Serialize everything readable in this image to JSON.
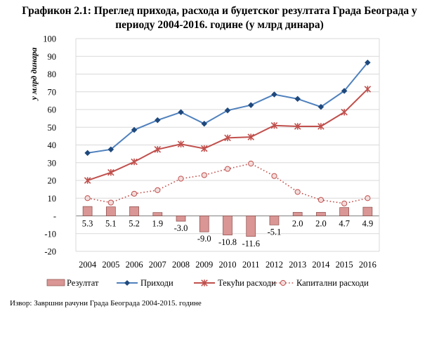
{
  "title_line1": "Графикон 2.1: Преглед прихода, расхода и буџетског резултата Града Београда у",
  "title_line2": "периоду 2004-2016. године (у млрд динара)",
  "source": "Извор: Завршни рачуни Града Београда 2004-2015. године",
  "chart_data": {
    "type": "bar",
    "ylabel": "у млрд динара",
    "ylim": [
      -20,
      100
    ],
    "yticks": [
      -20,
      -10,
      0,
      10,
      20,
      30,
      40,
      50,
      60,
      70,
      80,
      90,
      100
    ],
    "ytick_labels": [
      "-20",
      "-10",
      "-",
      "10",
      "20",
      "30",
      "40",
      "50",
      "60",
      "70",
      "80",
      "90",
      "100"
    ],
    "categories": [
      "2004",
      "2005",
      "2006",
      "2007",
      "2008",
      "2009",
      "2010",
      "2011",
      "2012",
      "2013",
      "2014",
      "2015",
      "2016"
    ],
    "grid": true,
    "legend_position": "bottom",
    "series": [
      {
        "name": "Резултат",
        "kind": "bar",
        "color": "#d99694",
        "values": [
          5.3,
          5.1,
          5.2,
          1.9,
          -3.0,
          -9.0,
          -10.8,
          -11.6,
          -5.1,
          2.0,
          2.0,
          4.7,
          4.9
        ],
        "labels": [
          "5.3",
          "5.1",
          "5.2",
          "1.9",
          "-3.0",
          "-9.0",
          "-10.8",
          "-11.6",
          "-5.1",
          "2.0",
          "2.0",
          "4.7",
          "4.9"
        ]
      },
      {
        "name": "Приходи",
        "kind": "line",
        "marker": "diamond",
        "color": "#4f81bd",
        "values": [
          35.5,
          37.5,
          48.5,
          54,
          58.5,
          52,
          59.5,
          62.5,
          68.5,
          66,
          61.5,
          70.5,
          86.5
        ]
      },
      {
        "name": "Текући расходи",
        "kind": "line",
        "marker": "star",
        "color": "#c0504d",
        "values": [
          20,
          24.5,
          30.5,
          37.5,
          40.5,
          38,
          44,
          44.5,
          51,
          50.5,
          50.5,
          58.5,
          71.5
        ]
      },
      {
        "name": "Капитални расходи",
        "kind": "dotted-line",
        "marker": "circle",
        "color": "#c0504d",
        "values": [
          10,
          7.5,
          12.5,
          14.5,
          21,
          23,
          26.5,
          29.5,
          22.5,
          13.5,
          9,
          7,
          10
        ]
      }
    ]
  }
}
